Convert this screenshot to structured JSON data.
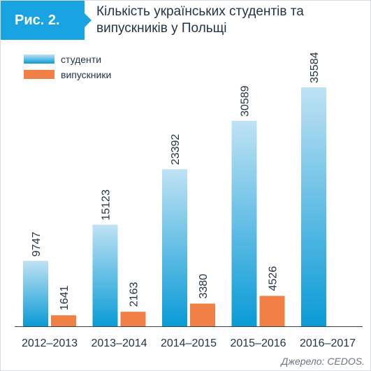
{
  "figure": {
    "label": "Рис. 2.",
    "title": "Кількість українських студентів та випускників у Польщі",
    "source": "Джерело: CEDOS."
  },
  "chart_data": {
    "type": "bar",
    "title": "Кількість українських студентів та випускників у Польщі",
    "xlabel": "",
    "ylabel": "",
    "categories": [
      "2012–2013",
      "2013–2014",
      "2014–2015",
      "2015–2016",
      "2016–2017"
    ],
    "series": [
      {
        "name": "студенти",
        "color_top": "#bfe2f4",
        "color_bottom": "#0a9bd6",
        "values": [
          9747,
          15123,
          23392,
          30589,
          35584
        ]
      },
      {
        "name": "випускники",
        "color": "#f08045",
        "values": [
          1641,
          2163,
          3380,
          4526,
          null
        ]
      }
    ],
    "ylim": [
      0,
      35584
    ],
    "grid": false,
    "legend": "top-left",
    "value_labels": "rotated-above-bars"
  }
}
